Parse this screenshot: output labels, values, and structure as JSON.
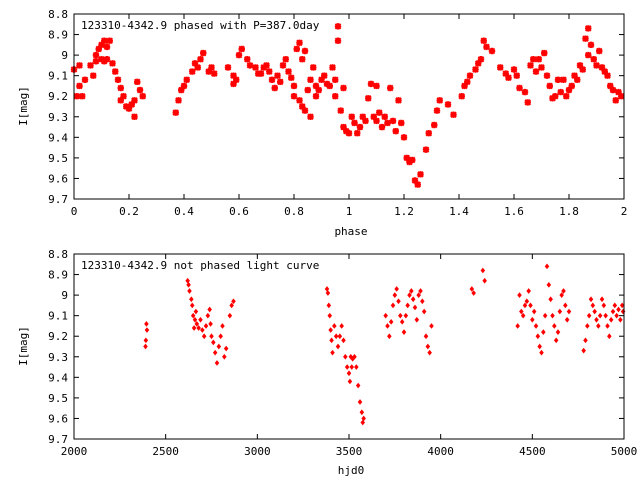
{
  "colors": {
    "points": "#ff0000",
    "axes": "#000000",
    "background": "#ffffff"
  },
  "chart_data": [
    {
      "type": "scatter",
      "title": "123310-4342.9 phased with P=387.0day",
      "xlabel": "phase",
      "ylabel": "I[mag]",
      "xlim": [
        0,
        2
      ],
      "ylim": [
        8.8,
        9.7
      ],
      "y_inverted": true,
      "grid": false,
      "xticks": [
        "0",
        "0.2",
        "0.4",
        "0.6",
        "0.8",
        "1",
        "1.2",
        "1.4",
        "1.6",
        "1.8",
        "2"
      ],
      "yticks": [
        "8.8",
        "8.9",
        "9",
        "9.1",
        "9.2",
        "9.3",
        "9.4",
        "9.5",
        "9.6",
        "9.7"
      ],
      "marker": "star",
      "points": [
        [
          0.0,
          9.07
        ],
        [
          0.01,
          9.2
        ],
        [
          0.02,
          9.15
        ],
        [
          0.02,
          9.05
        ],
        [
          0.03,
          9.2
        ],
        [
          0.04,
          9.12
        ],
        [
          0.06,
          9.05
        ],
        [
          0.07,
          9.1
        ],
        [
          0.08,
          9.03
        ],
        [
          0.08,
          9.0
        ],
        [
          0.09,
          8.97
        ],
        [
          0.1,
          9.02
        ],
        [
          0.1,
          8.95
        ],
        [
          0.11,
          8.93
        ],
        [
          0.11,
          9.03
        ],
        [
          0.12,
          9.02
        ],
        [
          0.12,
          8.96
        ],
        [
          0.13,
          8.93
        ],
        [
          0.14,
          9.04
        ],
        [
          0.15,
          9.08
        ],
        [
          0.16,
          9.12
        ],
        [
          0.17,
          9.16
        ],
        [
          0.17,
          9.22
        ],
        [
          0.18,
          9.2
        ],
        [
          0.19,
          9.25
        ],
        [
          0.2,
          9.26
        ],
        [
          0.21,
          9.24
        ],
        [
          0.22,
          9.3
        ],
        [
          0.22,
          9.22
        ],
        [
          0.23,
          9.13
        ],
        [
          0.24,
          9.17
        ],
        [
          0.25,
          9.2
        ],
        [
          0.37,
          9.28
        ],
        [
          0.38,
          9.22
        ],
        [
          0.39,
          9.17
        ],
        [
          0.4,
          9.15
        ],
        [
          0.41,
          9.12
        ],
        [
          0.43,
          9.08
        ],
        [
          0.44,
          9.04
        ],
        [
          0.45,
          9.06
        ],
        [
          0.46,
          9.02
        ],
        [
          0.47,
          8.99
        ],
        [
          0.49,
          9.08
        ],
        [
          0.5,
          9.06
        ],
        [
          0.51,
          9.09
        ],
        [
          0.56,
          9.06
        ],
        [
          0.58,
          9.1
        ],
        [
          0.58,
          9.14
        ],
        [
          0.59,
          9.12
        ],
        [
          0.6,
          9.0
        ],
        [
          0.61,
          8.97
        ],
        [
          0.63,
          9.02
        ],
        [
          0.64,
          9.05
        ],
        [
          0.66,
          9.06
        ],
        [
          0.67,
          9.09
        ],
        [
          0.68,
          9.09
        ],
        [
          0.69,
          9.06
        ],
        [
          0.7,
          9.05
        ],
        [
          0.71,
          9.08
        ],
        [
          0.72,
          9.12
        ],
        [
          0.73,
          9.16
        ],
        [
          0.74,
          9.1
        ],
        [
          0.75,
          9.13
        ],
        [
          0.76,
          9.05
        ],
        [
          0.77,
          9.02
        ],
        [
          0.78,
          9.08
        ],
        [
          0.79,
          9.11
        ],
        [
          0.8,
          9.15
        ],
        [
          0.8,
          9.2
        ],
        [
          0.81,
          8.97
        ],
        [
          0.82,
          8.94
        ],
        [
          0.82,
          9.22
        ],
        [
          0.83,
          9.25
        ],
        [
          0.83,
          9.02
        ],
        [
          0.84,
          9.27
        ],
        [
          0.84,
          8.98
        ],
        [
          0.85,
          9.17
        ],
        [
          0.86,
          9.12
        ],
        [
          0.86,
          9.3
        ],
        [
          0.87,
          9.06
        ],
        [
          0.88,
          9.15
        ],
        [
          0.88,
          9.2
        ],
        [
          0.89,
          9.17
        ],
        [
          0.9,
          9.12
        ],
        [
          0.91,
          9.1
        ],
        [
          0.92,
          9.14
        ],
        [
          0.93,
          9.15
        ],
        [
          0.94,
          9.06
        ],
        [
          0.95,
          9.12
        ],
        [
          0.95,
          9.2
        ],
        [
          0.96,
          8.93
        ],
        [
          0.96,
          8.86
        ],
        [
          0.97,
          9.27
        ],
        [
          0.98,
          9.35
        ],
        [
          0.98,
          9.16
        ],
        [
          0.99,
          9.37
        ],
        [
          1.0,
          9.38
        ],
        [
          1.01,
          9.3
        ],
        [
          1.02,
          9.33
        ],
        [
          1.03,
          9.38
        ],
        [
          1.04,
          9.35
        ],
        [
          1.05,
          9.3
        ],
        [
          1.06,
          9.32
        ],
        [
          1.07,
          9.21
        ],
        [
          1.08,
          9.14
        ],
        [
          1.09,
          9.3
        ],
        [
          1.1,
          9.32
        ],
        [
          1.1,
          9.15
        ],
        [
          1.11,
          9.28
        ],
        [
          1.12,
          9.35
        ],
        [
          1.13,
          9.3
        ],
        [
          1.14,
          9.33
        ],
        [
          1.15,
          9.16
        ],
        [
          1.16,
          9.32
        ],
        [
          1.17,
          9.37
        ],
        [
          1.18,
          9.22
        ],
        [
          1.19,
          9.33
        ],
        [
          1.2,
          9.4
        ],
        [
          1.21,
          9.5
        ],
        [
          1.22,
          9.52
        ],
        [
          1.23,
          9.51
        ],
        [
          1.24,
          9.61
        ],
        [
          1.25,
          9.63
        ],
        [
          1.26,
          9.58
        ],
        [
          1.28,
          9.46
        ],
        [
          1.29,
          9.38
        ],
        [
          1.31,
          9.34
        ],
        [
          1.32,
          9.27
        ],
        [
          1.33,
          9.22
        ],
        [
          1.36,
          9.24
        ],
        [
          1.38,
          9.29
        ],
        [
          1.41,
          9.2
        ],
        [
          1.42,
          9.15
        ],
        [
          1.43,
          9.13
        ],
        [
          1.44,
          9.1
        ],
        [
          1.46,
          9.07
        ],
        [
          1.47,
          9.04
        ],
        [
          1.48,
          9.02
        ],
        [
          1.49,
          8.93
        ],
        [
          1.5,
          8.96
        ],
        [
          1.52,
          8.98
        ],
        [
          1.55,
          9.06
        ],
        [
          1.57,
          9.09
        ],
        [
          1.58,
          9.11
        ],
        [
          1.6,
          9.07
        ],
        [
          1.61,
          9.1
        ],
        [
          1.62,
          9.16
        ],
        [
          1.64,
          9.18
        ],
        [
          1.65,
          9.23
        ],
        [
          1.66,
          9.05
        ],
        [
          1.67,
          9.02
        ],
        [
          1.68,
          9.08
        ],
        [
          1.69,
          9.02
        ],
        [
          1.7,
          9.06
        ],
        [
          1.71,
          8.99
        ],
        [
          1.72,
          9.1
        ],
        [
          1.73,
          9.15
        ],
        [
          1.74,
          9.21
        ],
        [
          1.75,
          9.2
        ],
        [
          1.76,
          9.12
        ],
        [
          1.77,
          9.18
        ],
        [
          1.78,
          9.12
        ],
        [
          1.79,
          9.2
        ],
        [
          1.8,
          9.17
        ],
        [
          1.81,
          9.15
        ],
        [
          1.82,
          9.1
        ],
        [
          1.83,
          9.12
        ],
        [
          1.84,
          9.05
        ],
        [
          1.85,
          9.07
        ],
        [
          1.86,
          8.92
        ],
        [
          1.87,
          8.87
        ],
        [
          1.87,
          9.0
        ],
        [
          1.88,
          8.95
        ],
        [
          1.89,
          9.02
        ],
        [
          1.9,
          9.05
        ],
        [
          1.91,
          8.98
        ],
        [
          1.92,
          9.06
        ],
        [
          1.93,
          9.08
        ],
        [
          1.94,
          9.1
        ],
        [
          1.95,
          9.15
        ],
        [
          1.96,
          9.17
        ],
        [
          1.97,
          9.22
        ],
        [
          1.98,
          9.18
        ],
        [
          1.99,
          9.2
        ]
      ]
    },
    {
      "type": "scatter",
      "title": "123310-4342.9 not phased light curve",
      "xlabel": "hjd0",
      "ylabel": "I[mag]",
      "xlim": [
        2000,
        5000
      ],
      "ylim": [
        8.8,
        9.7
      ],
      "y_inverted": true,
      "grid": false,
      "xticks": [
        "2000",
        "2500",
        "3000",
        "3500",
        "4000",
        "4500",
        "5000"
      ],
      "yticks": [
        "8.8",
        "8.9",
        "9",
        "9.1",
        "9.2",
        "9.3",
        "9.4",
        "9.5",
        "9.6",
        "9.7"
      ],
      "marker": "diamond",
      "points": [
        [
          2390,
          9.25
        ],
        [
          2392,
          9.22
        ],
        [
          2395,
          9.14
        ],
        [
          2398,
          9.17
        ],
        [
          2620,
          8.93
        ],
        [
          2625,
          8.95
        ],
        [
          2630,
          8.98
        ],
        [
          2640,
          9.02
        ],
        [
          2645,
          9.05
        ],
        [
          2650,
          9.1
        ],
        [
          2655,
          9.16
        ],
        [
          2660,
          9.12
        ],
        [
          2665,
          9.08
        ],
        [
          2670,
          9.14
        ],
        [
          2680,
          9.16
        ],
        [
          2690,
          9.12
        ],
        [
          2700,
          9.17
        ],
        [
          2710,
          9.2
        ],
        [
          2720,
          9.15
        ],
        [
          2730,
          9.1
        ],
        [
          2740,
          9.07
        ],
        [
          2745,
          9.14
        ],
        [
          2750,
          9.2
        ],
        [
          2760,
          9.23
        ],
        [
          2770,
          9.28
        ],
        [
          2780,
          9.33
        ],
        [
          2790,
          9.25
        ],
        [
          2800,
          9.2
        ],
        [
          2810,
          9.15
        ],
        [
          2820,
          9.3
        ],
        [
          2830,
          9.26
        ],
        [
          2850,
          9.1
        ],
        [
          2860,
          9.05
        ],
        [
          2870,
          9.03
        ],
        [
          3380,
          8.97
        ],
        [
          3385,
          8.99
        ],
        [
          3390,
          9.05
        ],
        [
          3395,
          9.1
        ],
        [
          3400,
          9.17
        ],
        [
          3405,
          9.22
        ],
        [
          3410,
          9.28
        ],
        [
          3420,
          9.15
        ],
        [
          3430,
          9.2
        ],
        [
          3440,
          9.25
        ],
        [
          3450,
          9.2
        ],
        [
          3460,
          9.15
        ],
        [
          3470,
          9.22
        ],
        [
          3480,
          9.3
        ],
        [
          3490,
          9.35
        ],
        [
          3500,
          9.38
        ],
        [
          3505,
          9.42
        ],
        [
          3510,
          9.3
        ],
        [
          3515,
          9.35
        ],
        [
          3520,
          9.31
        ],
        [
          3530,
          9.3
        ],
        [
          3540,
          9.35
        ],
        [
          3550,
          9.44
        ],
        [
          3560,
          9.52
        ],
        [
          3570,
          9.57
        ],
        [
          3575,
          9.62
        ],
        [
          3580,
          9.6
        ],
        [
          3700,
          9.1
        ],
        [
          3710,
          9.15
        ],
        [
          3720,
          9.2
        ],
        [
          3730,
          9.13
        ],
        [
          3740,
          9.05
        ],
        [
          3750,
          9.0
        ],
        [
          3760,
          8.97
        ],
        [
          3770,
          9.03
        ],
        [
          3780,
          9.1
        ],
        [
          3790,
          9.13
        ],
        [
          3800,
          9.18
        ],
        [
          3810,
          9.1
        ],
        [
          3820,
          9.05
        ],
        [
          3830,
          9.0
        ],
        [
          3840,
          8.98
        ],
        [
          3850,
          9.02
        ],
        [
          3860,
          9.06
        ],
        [
          3870,
          9.12
        ],
        [
          3880,
          9.0
        ],
        [
          3890,
          8.98
        ],
        [
          3900,
          9.03
        ],
        [
          3910,
          9.08
        ],
        [
          3920,
          9.2
        ],
        [
          3930,
          9.25
        ],
        [
          3940,
          9.28
        ],
        [
          3950,
          9.15
        ],
        [
          4170,
          8.97
        ],
        [
          4180,
          8.99
        ],
        [
          4230,
          8.88
        ],
        [
          4240,
          8.93
        ],
        [
          4420,
          9.15
        ],
        [
          4430,
          9.0
        ],
        [
          4440,
          9.08
        ],
        [
          4450,
          9.1
        ],
        [
          4460,
          9.05
        ],
        [
          4470,
          9.03
        ],
        [
          4480,
          8.98
        ],
        [
          4490,
          9.05
        ],
        [
          4500,
          9.12
        ],
        [
          4510,
          9.08
        ],
        [
          4520,
          9.15
        ],
        [
          4530,
          9.2
        ],
        [
          4540,
          9.25
        ],
        [
          4550,
          9.28
        ],
        [
          4560,
          9.18
        ],
        [
          4570,
          9.1
        ],
        [
          4580,
          8.86
        ],
        [
          4590,
          8.95
        ],
        [
          4600,
          9.02
        ],
        [
          4610,
          9.1
        ],
        [
          4620,
          9.15
        ],
        [
          4630,
          9.22
        ],
        [
          4640,
          9.18
        ],
        [
          4650,
          9.08
        ],
        [
          4660,
          9.0
        ],
        [
          4670,
          8.98
        ],
        [
          4680,
          9.05
        ],
        [
          4690,
          9.12
        ],
        [
          4700,
          9.08
        ],
        [
          4780,
          9.27
        ],
        [
          4790,
          9.22
        ],
        [
          4800,
          9.15
        ],
        [
          4810,
          9.1
        ],
        [
          4820,
          9.02
        ],
        [
          4830,
          9.05
        ],
        [
          4840,
          9.08
        ],
        [
          4850,
          9.12
        ],
        [
          4860,
          9.15
        ],
        [
          4870,
          9.1
        ],
        [
          4880,
          9.02
        ],
        [
          4890,
          9.05
        ],
        [
          4900,
          9.1
        ],
        [
          4910,
          9.15
        ],
        [
          4920,
          9.2
        ],
        [
          4930,
          9.12
        ],
        [
          4940,
          9.08
        ],
        [
          4950,
          9.05
        ],
        [
          4960,
          9.1
        ],
        [
          4970,
          9.07
        ],
        [
          4980,
          9.12
        ],
        [
          4990,
          9.05
        ],
        [
          4995,
          9.08
        ]
      ]
    }
  ]
}
